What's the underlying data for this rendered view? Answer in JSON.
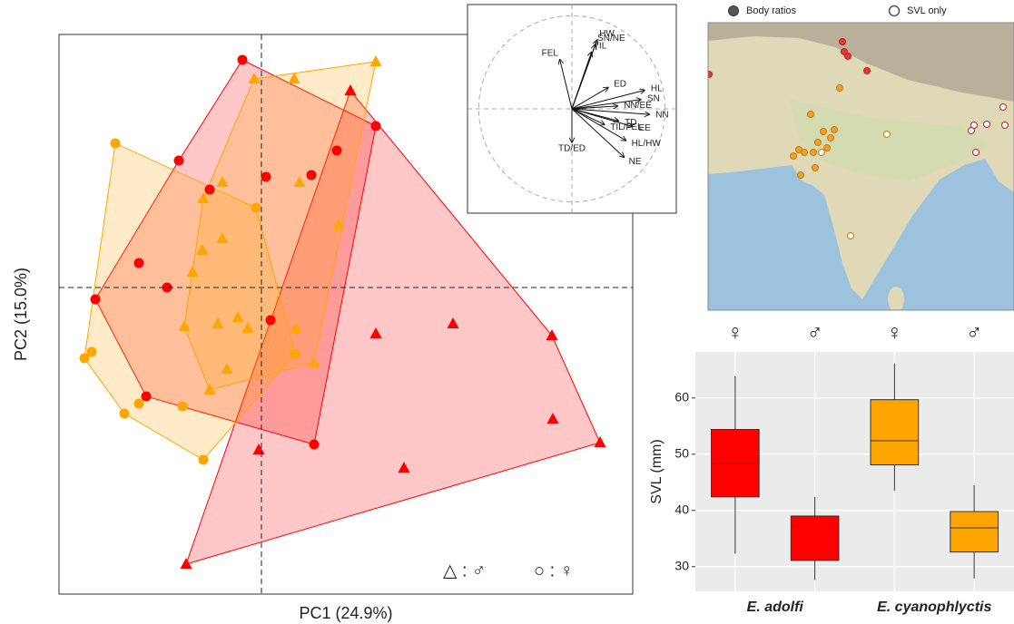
{
  "chart_data": [
    {
      "type": "scatter",
      "xlabel": "PC1 (24.9%)",
      "ylabel": "PC2 (15.0%)",
      "xlim": [
        -4.46,
        8.18
      ],
      "ylim": [
        -6.76,
        5.58
      ],
      "zero_lines": true,
      "hulls": true,
      "legend": [
        "△ : ♂",
        "○ : ♀"
      ],
      "series": [
        {
          "marker": "triangle",
          "color": "#ff0000",
          "x": [
            1.96,
            2.52,
            4.22,
            6.4,
            6.42,
            7.46,
            3.14,
            -0.06,
            -1.66
          ],
          "y": [
            4.34,
            -1.02,
            -0.8,
            -1.06,
            -2.9,
            -3.42,
            -3.98,
            -3.58,
            -6.1
          ]
        },
        {
          "marker": "circle",
          "color": "#ff0000",
          "x": [
            -0.42,
            2.52,
            1.66,
            1.1,
            -1.82,
            0.1,
            -1.14,
            -2.7,
            -2.08,
            -3.66,
            0.2,
            -2.54,
            1.16
          ],
          "y": [
            5.02,
            3.56,
            3.02,
            2.48,
            2.8,
            2.44,
            2.16,
            0.54,
            0,
            -0.26,
            -0.72,
            -2.4,
            -3.46
          ]
        },
        {
          "marker": "triangle",
          "color": "#ffa500",
          "x": [
            2.52,
            -0.16,
            0.72,
            -0.86,
            0.84,
            -1.28,
            1.7,
            -0.86,
            -1.3,
            -1.52,
            -1.7,
            -0.96,
            -0.52,
            -0.3,
            0.76,
            1.16,
            -0.76,
            -1.14
          ],
          "y": [
            4.98,
            4.6,
            4.6,
            2.32,
            2.32,
            1.96,
            1.38,
            1.08,
            0.82,
            0.34,
            -0.86,
            -0.8,
            -0.66,
            -0.9,
            -0.9,
            -1.66,
            -1.8,
            -2.26
          ]
        },
        {
          "marker": "circle",
          "color": "#ffa500",
          "x": [
            -3.22,
            -0.12,
            -3.74,
            -3.9,
            -2.7,
            -3.02,
            -1.74,
            -1.28,
            0.74
          ],
          "y": [
            3.18,
            1.76,
            -1.42,
            -1.56,
            -2.56,
            -2.78,
            -2.62,
            -3.8,
            -1.46
          ]
        }
      ]
    },
    {
      "type": "vector",
      "xlim": [
        -1.12,
        1.12
      ],
      "ylim": [
        -1.12,
        1.12
      ],
      "unit_circle": true,
      "zero_lines": true,
      "labels": [
        "HW",
        "SN/NE",
        "TIL",
        "FEL",
        "ED",
        "HL",
        "SN",
        "NN/EE",
        "NN",
        "TD",
        "EE",
        "TIL/FEL",
        "HL/HW",
        "NE",
        "TD/ED"
      ],
      "x": [
        0.27,
        0.25,
        0.21,
        -0.13,
        0.39,
        0.78,
        0.74,
        0.49,
        0.83,
        0.5,
        0.65,
        0.35,
        0.58,
        0.56,
        0
      ],
      "y": [
        0.74,
        0.69,
        0.61,
        0.53,
        0.23,
        0.2,
        0.1,
        0.03,
        -0.06,
        -0.13,
        -0.19,
        -0.17,
        -0.34,
        -0.52,
        -0.36
      ]
    },
    {
      "type": "map",
      "series": [
        {
          "name": "Body ratios"
        },
        {
          "name": "SVL only"
        }
      ]
    },
    {
      "type": "box",
      "ylabel": "SVL (mm)",
      "ylim": [
        25.6,
        68.2
      ],
      "yticks": [
        30,
        40,
        50,
        60
      ],
      "grid": true,
      "categories": [
        "♀",
        "♂",
        "♀",
        "♂"
      ],
      "colors": [
        "#ff0000",
        "#ff0000",
        "#ffa500",
        "#ffa500"
      ],
      "groups": [
        "E. adolfi",
        "E. cyanophlyctis"
      ],
      "min": [
        32.3,
        27.6,
        43.5,
        27.9
      ],
      "q1": [
        42.4,
        31.1,
        48.1,
        32.6
      ],
      "median": [
        48.3,
        37.3,
        52.4,
        36.9
      ],
      "q3": [
        54.4,
        39.0,
        59.7,
        39.8
      ],
      "max": [
        63.9,
        42.4,
        66.1,
        44.5
      ]
    }
  ]
}
